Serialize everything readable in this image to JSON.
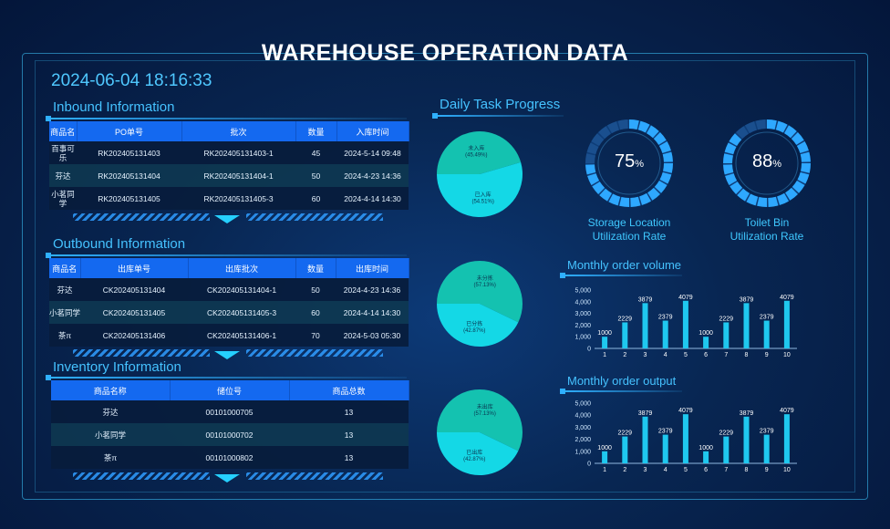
{
  "header": {
    "title": "WAREHOUSE OPERATION DATA",
    "datetime": "2024-06-04 18:16:33"
  },
  "inbound": {
    "title": "Inbound Information",
    "columns": [
      "商品名",
      "PO单号",
      "批次",
      "数量",
      "入库时间"
    ],
    "rows": [
      [
        "百事可乐",
        "RK202405131403",
        "RK202405131403-1",
        "45",
        "2024-5-14 09:48"
      ],
      [
        "芬达",
        "RK202405131404",
        "RK202405131404-1",
        "50",
        "2024-4-23 14:36"
      ],
      [
        "小茗同学",
        "RK202405131405",
        "RK202405131405-3",
        "60",
        "2024-4-14 14:30"
      ]
    ]
  },
  "outbound": {
    "title": "Outbound Information",
    "columns": [
      "商品名",
      "出库单号",
      "出库批次",
      "数量",
      "出库时间"
    ],
    "rows": [
      [
        "芬达",
        "CK202405131404",
        "CK202405131404-1",
        "50",
        "2024-4-23 14:36"
      ],
      [
        "小茗同学",
        "CK202405131405",
        "CK202405131405-3",
        "60",
        "2024-4-14 14:30"
      ],
      [
        "茶π",
        "CK202405131406",
        "CK202405131406-1",
        "70",
        "2024-5-03 05:30"
      ]
    ]
  },
  "inventory": {
    "title": "Inventory Information",
    "columns": [
      "商品名称",
      "储位号",
      "商品总数"
    ],
    "rows": [
      [
        "芬达",
        "00101000705",
        "13"
      ],
      [
        "小茗同学",
        "00101000702",
        "13"
      ],
      [
        "茶π",
        "00101000802",
        "13"
      ]
    ]
  },
  "daily_task": {
    "title": "Daily Task Progress",
    "pies": [
      {
        "slices": [
          {
            "label": "未入库",
            "pct_text": "(45.49%)",
            "value": 45.49
          },
          {
            "label": "已入库",
            "pct_text": "(54.51%)",
            "value": 54.51
          }
        ]
      },
      {
        "slices": [
          {
            "label": "未分拣",
            "pct_text": "(57.13%)",
            "value": 57.13
          },
          {
            "label": "已分拣",
            "pct_text": "(42.87%)",
            "value": 42.87
          }
        ]
      },
      {
        "slices": [
          {
            "label": "未出库",
            "pct_text": "(57.13%)",
            "value": 57.13
          },
          {
            "label": "已出库",
            "pct_text": "(42.87%)",
            "value": 42.87
          }
        ]
      }
    ]
  },
  "rings": [
    {
      "value": 75,
      "value_text": "75",
      "unit": "%",
      "label_line1": "Storage Location",
      "label_line2": "Utilization Rate"
    },
    {
      "value": 88,
      "value_text": "88",
      "unit": "%",
      "label_line1": "Toilet Bin",
      "label_line2": "Utilization Rate"
    }
  ],
  "monthly_volume": {
    "title": "Monthly order volume"
  },
  "monthly_output": {
    "title": "Monthly order output"
  },
  "chart_data": [
    {
      "type": "bar",
      "title": "Monthly order volume",
      "categories": [
        "1",
        "2",
        "3",
        "4",
        "5",
        "6",
        "7",
        "8",
        "9",
        "10"
      ],
      "values": [
        1000,
        2229,
        3879,
        2379,
        4079,
        1000,
        2229,
        3879,
        2379,
        4079
      ],
      "ylim": [
        0,
        5000
      ],
      "yticks": [
        "0",
        "1,000",
        "2,000",
        "3,000",
        "4,000",
        "5,000"
      ]
    },
    {
      "type": "bar",
      "title": "Monthly order output",
      "categories": [
        "1",
        "2",
        "3",
        "4",
        "5",
        "6",
        "7",
        "8",
        "9",
        "10"
      ],
      "values": [
        1000,
        2229,
        3879,
        2379,
        4079,
        1000,
        2229,
        3879,
        2379,
        4079
      ],
      "ylim": [
        0,
        5000
      ],
      "yticks": [
        "0",
        "1,000",
        "2,000",
        "3,000",
        "4,000",
        "5,000"
      ]
    }
  ],
  "colors": {
    "accent": "#1469f0",
    "pie_a": "#14c2b0",
    "pie_b": "#14d8e6",
    "ring": "#2ea8ff"
  }
}
